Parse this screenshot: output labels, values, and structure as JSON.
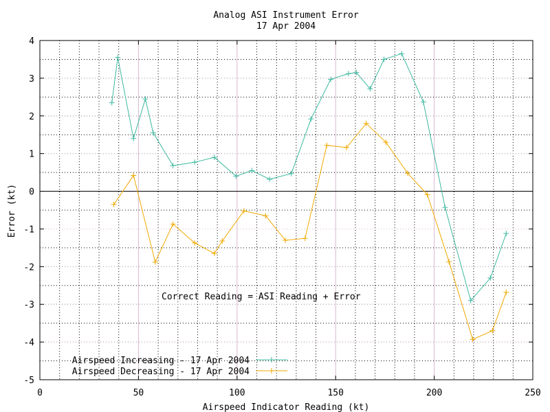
{
  "chart_data": {
    "type": "line",
    "title": "Analog ASI Instrument Error",
    "subtitle": "17 Apr 2004",
    "xlabel": "Airspeed Indicator Reading (kt)",
    "ylabel": "Error (kt)",
    "xlim": [
      0,
      250
    ],
    "ylim": [
      -5,
      4
    ],
    "xticks": [
      0,
      50,
      100,
      150,
      200,
      250
    ],
    "yticks": [
      -5,
      -4,
      -3,
      -2,
      -1,
      0,
      1,
      2,
      3,
      4
    ],
    "x_major_grid": [
      50,
      100,
      150,
      200
    ],
    "x_minor_grid": [
      10,
      20,
      30,
      40,
      60,
      70,
      80,
      90,
      110,
      120,
      130,
      140,
      160,
      170,
      180,
      190,
      210,
      220,
      230,
      240
    ],
    "y_minor_grid": [
      -4.5,
      -3.5,
      -2.5,
      -1.5,
      -0.5,
      0.5,
      1.5,
      2.5,
      3.5
    ],
    "grid": true,
    "zero_line": true,
    "annotation": "Correct Reading = ASI Reading + Error",
    "legend_position": "bottom-left",
    "series": [
      {
        "name": "Airspeed Increasing - 17 Apr 2004",
        "color": "#3cb8a0",
        "x": [
          36.5,
          39.5,
          47.5,
          53.5,
          57.5,
          67.5,
          78.5,
          88.5,
          99.5,
          107.5,
          116.5,
          127.5,
          137.5,
          147.5,
          156.5,
          160.5,
          167.5,
          174.5,
          183.5,
          194.5,
          205.5,
          218.5,
          228.5,
          236.5
        ],
        "y": [
          2.35,
          3.55,
          1.4,
          2.45,
          1.55,
          0.68,
          0.77,
          0.9,
          0.4,
          0.55,
          0.32,
          0.47,
          1.92,
          2.97,
          3.12,
          3.15,
          2.72,
          3.5,
          3.65,
          2.37,
          -0.43,
          -2.9,
          -2.3,
          -1.12
        ]
      },
      {
        "name": "Airspeed Decreasing - 17 Apr 2004",
        "color": "#f0a800",
        "x": [
          37.5,
          47.5,
          58.5,
          67.5,
          78.5,
          88.5,
          92.5,
          103.5,
          114.5,
          124.5,
          134.5,
          145.5,
          155.5,
          165.5,
          175.5,
          186.5,
          196.5,
          207.5,
          219.5,
          229.5,
          236.5
        ],
        "y": [
          -0.35,
          0.42,
          -1.88,
          -0.87,
          -1.37,
          -1.65,
          -1.32,
          -0.52,
          -0.65,
          -1.3,
          -1.25,
          1.22,
          1.16,
          1.8,
          1.3,
          0.48,
          -0.09,
          -1.87,
          -3.93,
          -3.7,
          -2.68
        ]
      }
    ]
  }
}
